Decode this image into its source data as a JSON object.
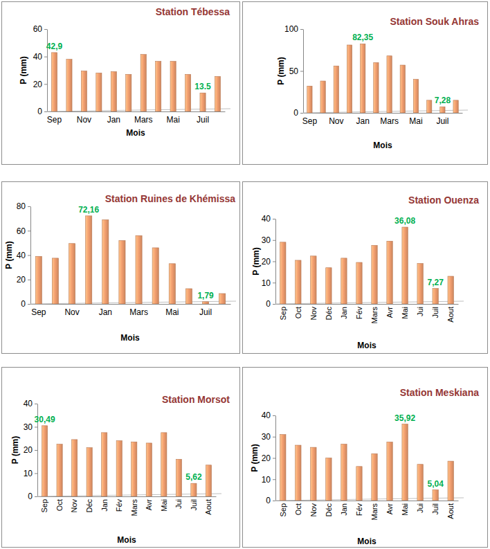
{
  "chart_data": [
    {
      "type": "bar",
      "title": "Station Tébessa",
      "xlabel": "Mois",
      "ylabel": "P (mm)",
      "categories": [
        "Sep",
        null,
        "Nov",
        null,
        "Jan",
        null,
        "Mars",
        null,
        "Mai",
        null,
        "Juil",
        null
      ],
      "values": [
        42.9,
        38,
        29.5,
        28,
        29,
        27,
        41.5,
        36.5,
        36.5,
        27,
        13.5,
        25.5
      ],
      "value_labels": [
        "42,9",
        null,
        null,
        null,
        null,
        null,
        null,
        null,
        null,
        null,
        "13.5",
        null
      ],
      "data_labels": true,
      "color": "#f4a070",
      "ylim": [
        0,
        60
      ],
      "yticks": [
        0,
        20,
        40,
        60
      ]
    },
    {
      "type": "bar",
      "title": "Station Souk Ahras",
      "xlabel": "Mois",
      "ylabel": "P (mm)",
      "categories": [
        "Sep",
        null,
        "Nov",
        null,
        "Jan",
        null,
        "Mars",
        null,
        "Mai",
        null,
        "Juil",
        null
      ],
      "values": [
        32,
        38,
        56,
        81,
        82.35,
        60,
        68,
        57,
        40,
        15,
        7.28,
        15
      ],
      "value_labels": [
        null,
        null,
        null,
        null,
        "82,35",
        null,
        null,
        null,
        null,
        null,
        "7,28",
        null
      ],
      "data_labels": true,
      "color": "#f4a070",
      "ylim": [
        0,
        100
      ],
      "yticks": [
        0,
        50,
        100
      ]
    },
    {
      "type": "bar",
      "title": "Station Ruines de Khémissa",
      "xlabel": "Mois",
      "ylabel": "P (mm)",
      "categories": [
        "Sep",
        null,
        "Nov",
        null,
        "Jan",
        null,
        "Mars",
        null,
        "Mai",
        null,
        "Juil",
        null
      ],
      "values": [
        39,
        37.5,
        49.5,
        72.16,
        69,
        52,
        56,
        46,
        33,
        12.5,
        1.79,
        8.5
      ],
      "value_labels": [
        null,
        null,
        null,
        "72,16",
        null,
        null,
        null,
        null,
        null,
        null,
        "1,79",
        null
      ],
      "data_labels": true,
      "color": "#f4a070",
      "ylim": [
        0,
        80
      ],
      "yticks": [
        0,
        20,
        40,
        60,
        80
      ]
    },
    {
      "type": "bar",
      "title": "Station Ouenza",
      "xlabel": "Mois",
      "ylabel": "P (mm)",
      "categories": [
        "Sep",
        "Oct",
        "Nov",
        "Déc",
        "Jan",
        "Fév",
        "Mars",
        "Avr",
        "Mai",
        "Jui",
        "Juil",
        "Aout"
      ],
      "values": [
        29,
        20.5,
        22.5,
        17,
        21.5,
        19.5,
        27.5,
        29.5,
        36.08,
        19,
        7.27,
        13
      ],
      "value_labels": [
        null,
        null,
        null,
        null,
        null,
        null,
        null,
        null,
        "36,08",
        null,
        "7,27",
        null
      ],
      "data_labels": true,
      "color": "#f4a070",
      "ylim": [
        0,
        40
      ],
      "yticks": [
        0,
        10,
        20,
        30,
        40
      ]
    },
    {
      "type": "bar",
      "title": "Station Morsot",
      "xlabel": "Mois",
      "ylabel": "P (mm)",
      "categories": [
        "Sep",
        "Oct",
        "Nov",
        "Déc",
        "Jan",
        "Fév",
        "Mars",
        "Avr",
        "Mai",
        "Jui",
        "Juil",
        "Aout"
      ],
      "values": [
        30.49,
        22.5,
        24.5,
        21,
        27.5,
        24,
        23.5,
        23,
        27.5,
        16,
        5.62,
        13.5
      ],
      "value_labels": [
        "30,49",
        null,
        null,
        null,
        null,
        null,
        null,
        null,
        null,
        null,
        "5,62",
        null
      ],
      "data_labels": true,
      "color": "#f4a070",
      "ylim": [
        0,
        40
      ],
      "yticks": [
        0,
        10,
        20,
        30,
        40
      ]
    },
    {
      "type": "bar",
      "title": "Station Meskiana",
      "xlabel": "Mois",
      "ylabel": "P (mm)",
      "categories": [
        "Sep",
        "Oct",
        "Nov",
        "Déc",
        "Jan",
        "Fév",
        "Mars",
        "Avr",
        "Mai",
        "Jui",
        "Juil",
        "Aout"
      ],
      "values": [
        31,
        26,
        25,
        20,
        26.5,
        16,
        22,
        27.5,
        35.92,
        17,
        5.04,
        18.5
      ],
      "value_labels": [
        null,
        null,
        null,
        null,
        null,
        null,
        null,
        null,
        "35,92",
        null,
        "5,04",
        null
      ],
      "data_labels": true,
      "color": "#f4a070",
      "ylim": [
        0,
        40
      ],
      "yticks": [
        0,
        10,
        20,
        30,
        40
      ]
    }
  ]
}
